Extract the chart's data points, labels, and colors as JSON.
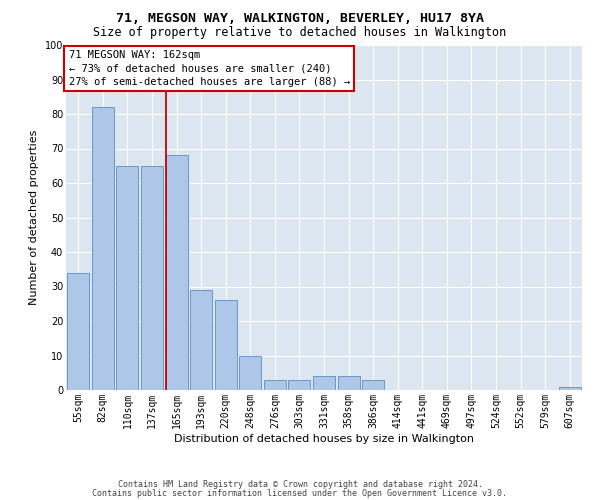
{
  "title_line1": "71, MEGSON WAY, WALKINGTON, BEVERLEY, HU17 8YA",
  "title_line2": "Size of property relative to detached houses in Walkington",
  "xlabel": "Distribution of detached houses by size in Walkington",
  "ylabel": "Number of detached properties",
  "categories": [
    "55sqm",
    "82sqm",
    "110sqm",
    "137sqm",
    "165sqm",
    "193sqm",
    "220sqm",
    "248sqm",
    "276sqm",
    "303sqm",
    "331sqm",
    "358sqm",
    "386sqm",
    "414sqm",
    "441sqm",
    "469sqm",
    "497sqm",
    "524sqm",
    "552sqm",
    "579sqm",
    "607sqm"
  ],
  "values": [
    34,
    82,
    65,
    65,
    68,
    29,
    26,
    10,
    3,
    3,
    4,
    4,
    3,
    0,
    0,
    0,
    0,
    0,
    0,
    0,
    1
  ],
  "bar_color": "#aec6e8",
  "bar_edge_color": "#5a8fc2",
  "annotation_text": "71 MEGSON WAY: 162sqm\n← 73% of detached houses are smaller (240)\n27% of semi-detached houses are larger (88) →",
  "annotation_box_color": "#ffffff",
  "annotation_box_edge_color": "#cc0000",
  "vline_color": "#cc0000",
  "vline_x": 3.55,
  "ylim": [
    0,
    100
  ],
  "yticks": [
    0,
    10,
    20,
    30,
    40,
    50,
    60,
    70,
    80,
    90,
    100
  ],
  "plot_bg_color": "#dce6f0",
  "footer_line1": "Contains HM Land Registry data © Crown copyright and database right 2024.",
  "footer_line2": "Contains public sector information licensed under the Open Government Licence v3.0.",
  "title_fontsize": 9.5,
  "subtitle_fontsize": 8.5,
  "xlabel_fontsize": 8,
  "ylabel_fontsize": 8,
  "tick_fontsize": 7,
  "annotation_fontsize": 7.5,
  "footer_fontsize": 6
}
